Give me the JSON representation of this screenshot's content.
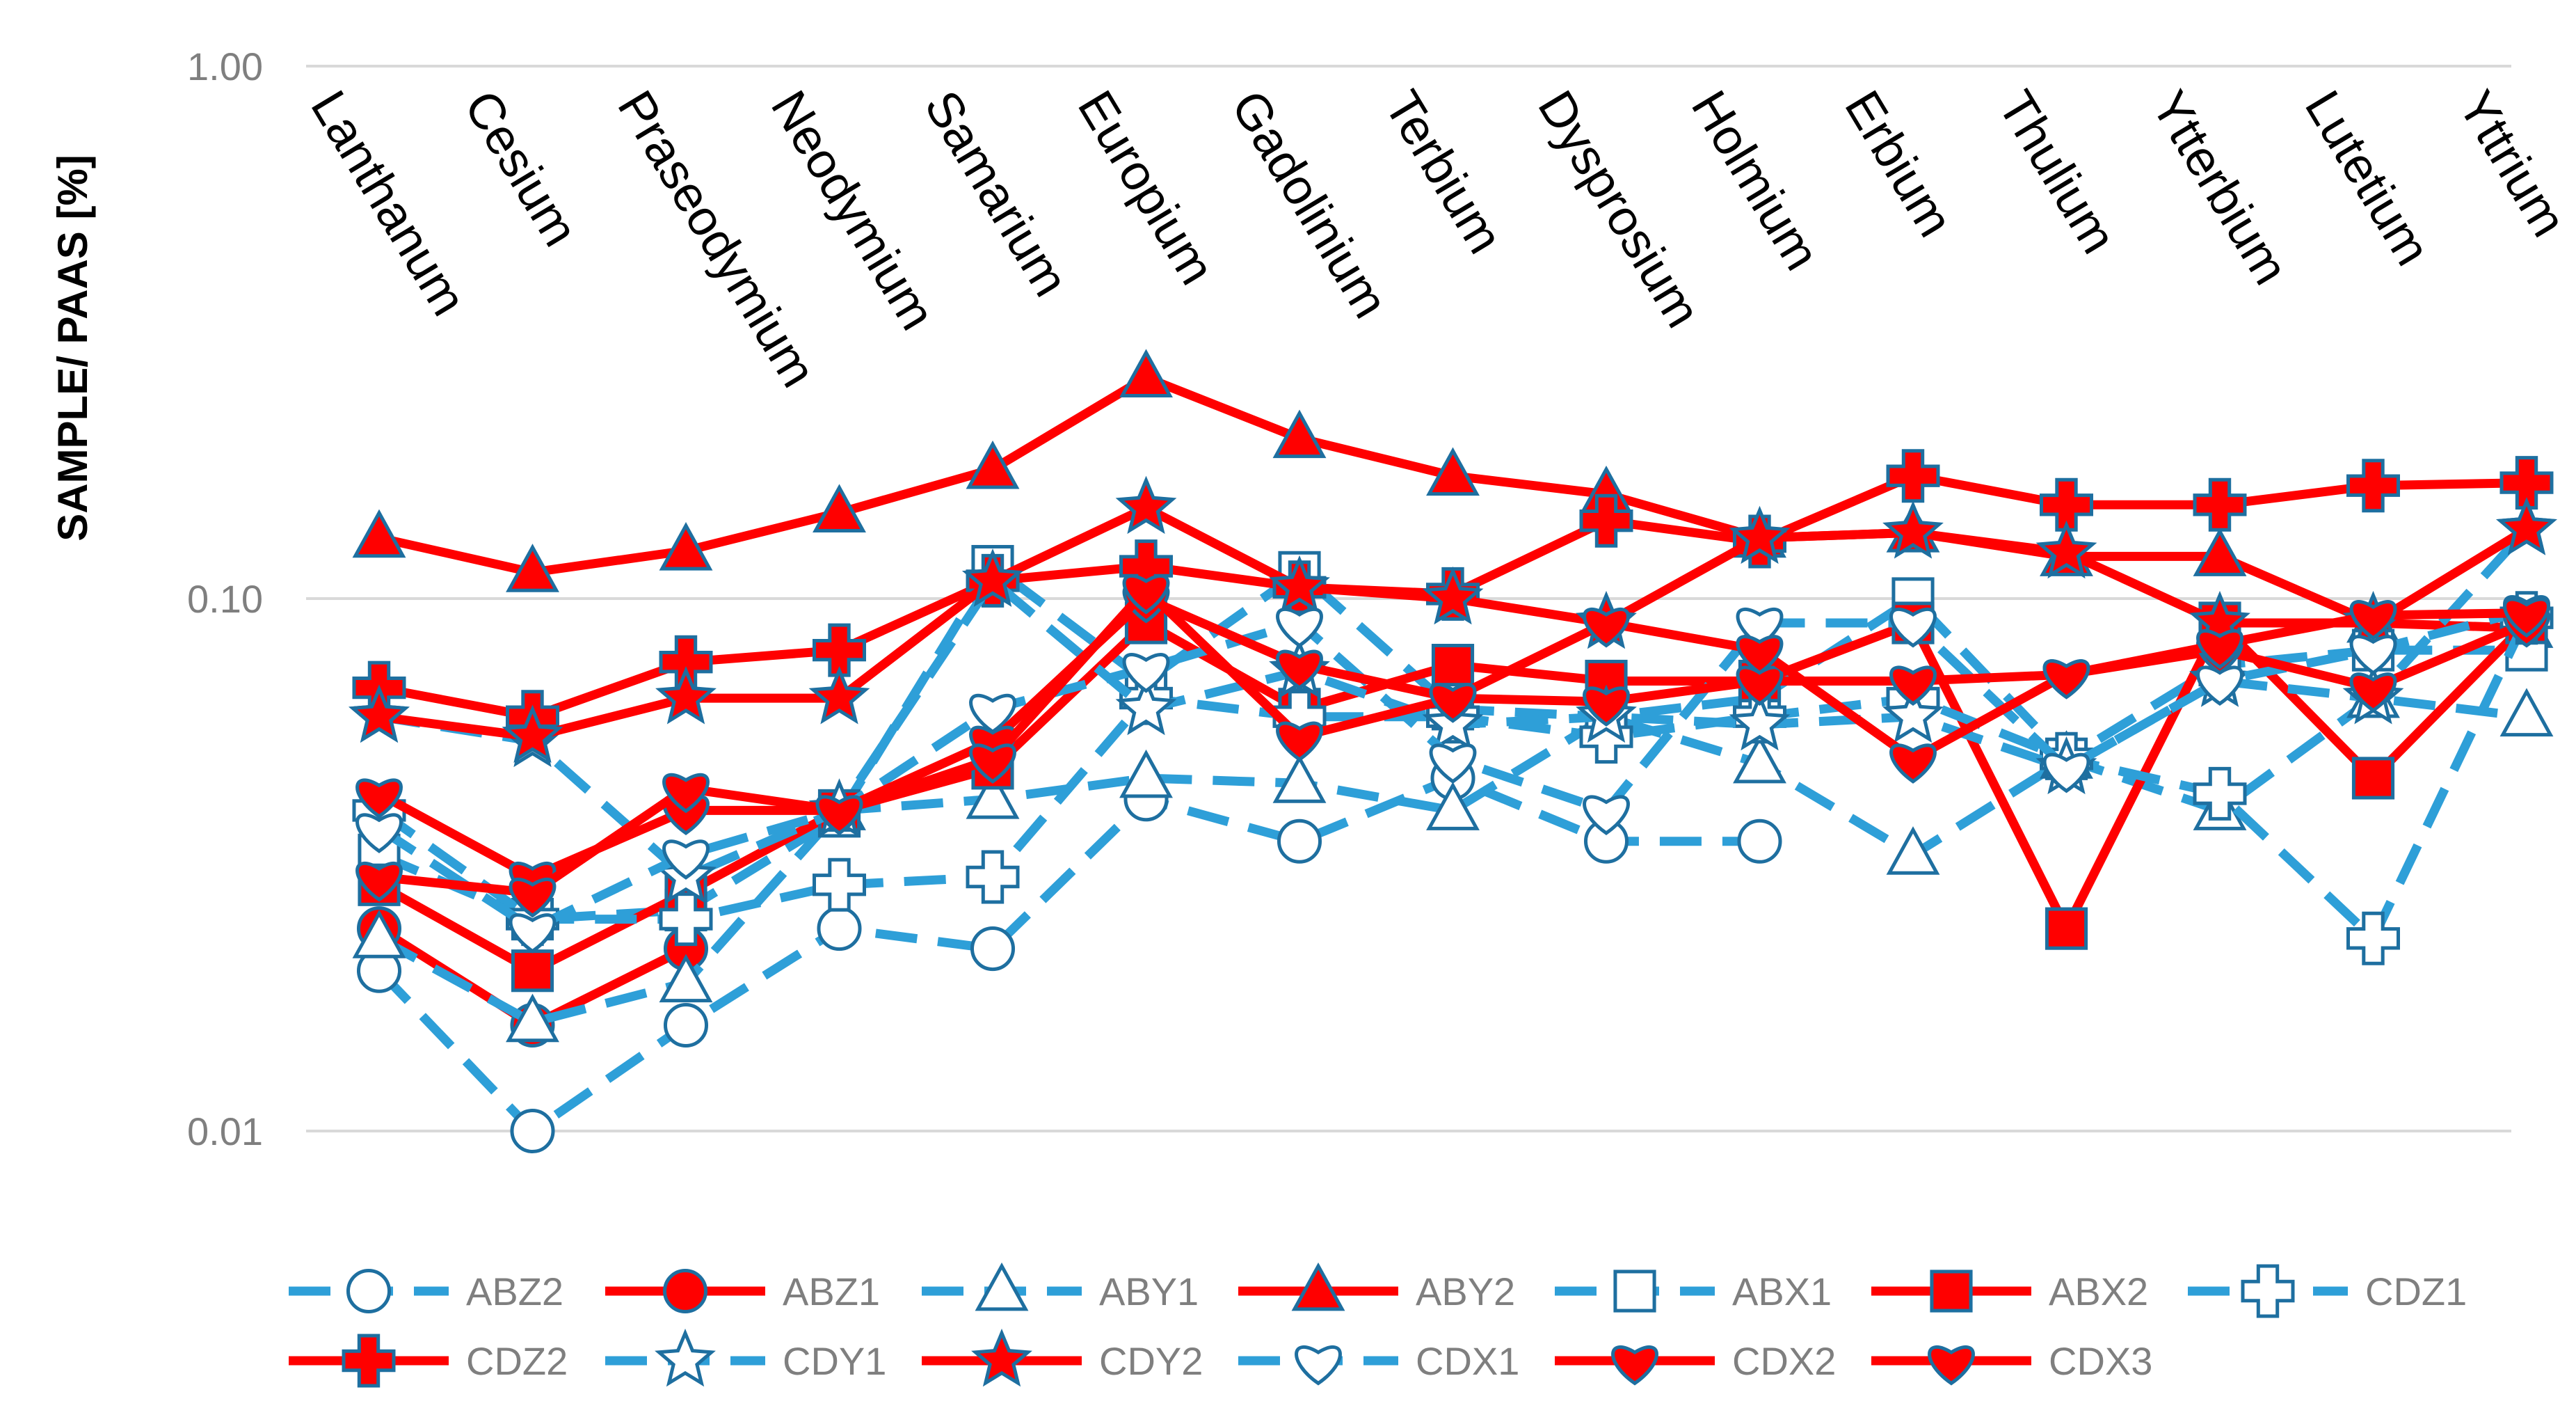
{
  "chart_data": {
    "type": "line",
    "title": "",
    "xlabel": "",
    "ylabel": "SAMPLE/ PAAS [%]",
    "yscale": "log",
    "ylim": [
      0.01,
      1.0
    ],
    "yticks": [
      "1.00",
      "0.10",
      "0.01"
    ],
    "categories": [
      "Lanthanum",
      "Cesium",
      "Praseodymium",
      "Neodymium",
      "Samarium",
      "Europium",
      "Gadolinium",
      "Terbium",
      "Dysprosium",
      "Holmium",
      "Erbium",
      "Thulium",
      "Ytterbium",
      "Lutetium",
      "Yttrium"
    ],
    "legend_position": "bottom",
    "series": [
      {
        "name": "ABZ2",
        "color": "#2e9fd8",
        "marker": "circle",
        "filled": false,
        "dashed": true,
        "values": [
          0.02,
          0.01,
          0.0158,
          0.024,
          0.022,
          0.042,
          0.035,
          0.046,
          0.035,
          0.035,
          null,
          null,
          null,
          null,
          null
        ]
      },
      {
        "name": "ABZ1",
        "color": "#ff0000",
        "marker": "circle",
        "filled": true,
        "dashed": false,
        "values": [
          0.024,
          0.0158,
          0.022,
          null,
          null,
          null,
          null,
          null,
          null,
          null,
          null,
          null,
          null,
          null,
          null
        ]
      },
      {
        "name": "ABY1",
        "color": "#2e9fd8",
        "marker": "triangle",
        "filled": false,
        "dashed": true,
        "values": [
          0.023,
          0.016,
          0.019,
          0.04,
          0.042,
          0.046,
          0.045,
          0.04,
          0.06,
          0.049,
          0.033,
          0.05,
          0.04,
          0.065,
          0.06
        ]
      },
      {
        "name": "ABY2",
        "color": "#ff0000",
        "marker": "triangle",
        "filled": true,
        "dashed": false,
        "values": [
          0.13,
          0.112,
          0.123,
          0.145,
          0.175,
          0.26,
          0.2,
          0.17,
          0.157,
          0.13,
          0.133,
          0.12,
          0.12,
          0.09,
          0.088
        ]
      },
      {
        "name": "ABX1",
        "color": "#2e9fd8",
        "marker": "square",
        "filled": false,
        "dashed": true,
        "values": [
          0.033,
          0.025,
          0.026,
          0.039,
          0.115,
          0.07,
          0.112,
          0.062,
          0.06,
          0.065,
          0.1,
          0.05,
          0.075,
          0.08,
          0.08
        ]
      },
      {
        "name": "ABX2",
        "color": "#ff0000",
        "marker": "square",
        "filled": true,
        "dashed": false,
        "values": [
          0.029,
          0.02,
          0.028,
          0.04,
          0.048,
          0.09,
          0.062,
          0.075,
          0.07,
          0.07,
          0.09,
          0.024,
          0.09,
          0.046,
          0.09
        ]
      },
      {
        "name": "CDZ1",
        "color": "#2e9fd8",
        "marker": "cross",
        "filled": false,
        "dashed": true,
        "values": [
          0.04,
          0.025,
          0.025,
          0.029,
          0.03,
          0.065,
          0.06,
          0.06,
          0.055,
          0.06,
          0.065,
          0.05,
          0.043,
          0.023,
          0.092
        ]
      },
      {
        "name": "CDZ2",
        "color": "#ff0000",
        "marker": "cross",
        "filled": true,
        "dashed": false,
        "values": [
          0.068,
          0.06,
          0.076,
          0.08,
          0.108,
          0.115,
          0.105,
          0.102,
          0.14,
          0.128,
          0.17,
          0.15,
          0.15,
          0.163,
          0.165
        ]
      },
      {
        "name": "CDY1",
        "color": "#2e9fd8",
        "marker": "star",
        "filled": false,
        "dashed": true,
        "values": [
          0.06,
          0.054,
          0.03,
          0.04,
          0.108,
          0.062,
          0.073,
          0.058,
          0.06,
          0.058,
          0.06,
          0.048,
          0.07,
          0.065,
          0.135
        ]
      },
      {
        "name": "CDY2",
        "color": "#ff0000",
        "marker": "star",
        "filled": true,
        "dashed": false,
        "values": [
          0.06,
          0.055,
          0.065,
          0.065,
          0.108,
          0.148,
          0.105,
          0.1,
          0.09,
          0.13,
          0.133,
          0.122,
          0.09,
          0.09,
          0.135
        ]
      },
      {
        "name": "CDX1",
        "color": "#2e9fd8",
        "marker": "heart",
        "filled": false,
        "dashed": true,
        "values": [
          0.037,
          0.024,
          0.033,
          0.04,
          0.062,
          0.074,
          0.09,
          0.05,
          0.04,
          0.09,
          0.09,
          0.048,
          0.07,
          0.08,
          0.095
        ]
      },
      {
        "name": "CDX2",
        "color": "#ff0000",
        "marker": "heart",
        "filled": true,
        "dashed": false,
        "values": [
          0.043,
          0.03,
          0.04,
          0.04,
          0.054,
          0.1,
          0.075,
          0.065,
          0.064,
          0.07,
          0.07,
          0.072,
          0.08,
          0.068,
          0.09
        ]
      },
      {
        "name": "CDX3",
        "color": "#ff0000",
        "marker": "heart",
        "filled": true,
        "dashed": false,
        "values": [
          0.03,
          0.028,
          0.044,
          0.04,
          0.05,
          0.104,
          0.055,
          0.065,
          0.09,
          0.08,
          0.05,
          0.072,
          0.082,
          0.093,
          0.094
        ]
      }
    ]
  }
}
